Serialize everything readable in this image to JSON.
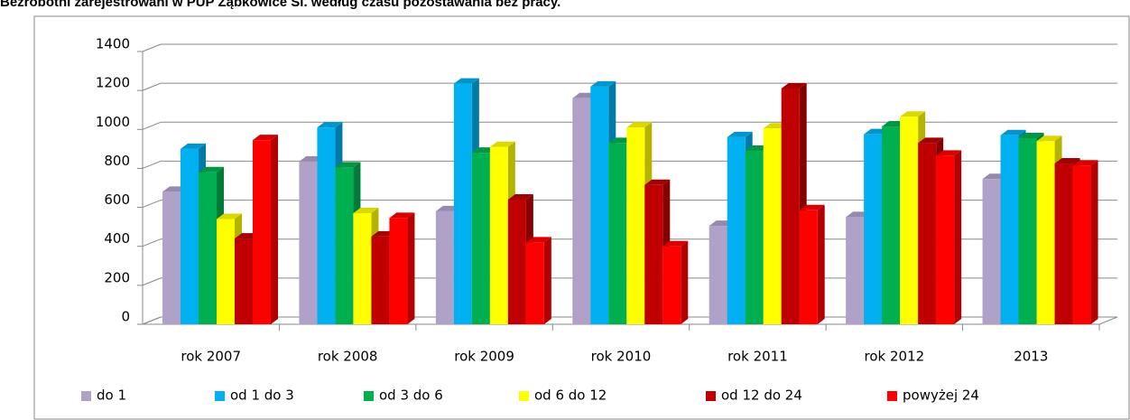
{
  "chart_data": {
    "type": "bar3d",
    "title": "Bezrobotni zarejestrowani w PUP Ząbkowice Śl. według czasu pozostawania bez pracy.",
    "categories": [
      "rok 2007",
      "rok 2008",
      "rok 2009",
      "rok 2010",
      "rok 2011",
      "rok 2012",
      "2013"
    ],
    "series": [
      {
        "name": "do 1",
        "color": "#b0a1c9",
        "values": [
          680,
          835,
          580,
          1160,
          505,
          550,
          745
        ]
      },
      {
        "name": "od 1 do 3",
        "color": "#00b0f0",
        "values": [
          900,
          1010,
          1235,
          1220,
          960,
          975,
          970
        ]
      },
      {
        "name": "od 3 do 6",
        "color": "#00b050",
        "values": [
          780,
          805,
          880,
          930,
          890,
          1015,
          955
        ]
      },
      {
        "name": "od 6 do 12",
        "color": "#ffff00",
        "values": [
          540,
          570,
          910,
          1010,
          1005,
          1065,
          940
        ]
      },
      {
        "name": "od 12 do 24",
        "color": "#c00000",
        "values": [
          440,
          450,
          640,
          715,
          1210,
          930,
          825
        ]
      },
      {
        "name": "powyżej 24",
        "color": "#ff0000",
        "values": [
          945,
          545,
          420,
          400,
          585,
          865,
          815
        ]
      }
    ],
    "ylim": [
      0,
      1400
    ],
    "yticks": [
      0,
      200,
      400,
      600,
      800,
      1000,
      1200,
      1400
    ],
    "grid": true,
    "legend": "bottom"
  }
}
